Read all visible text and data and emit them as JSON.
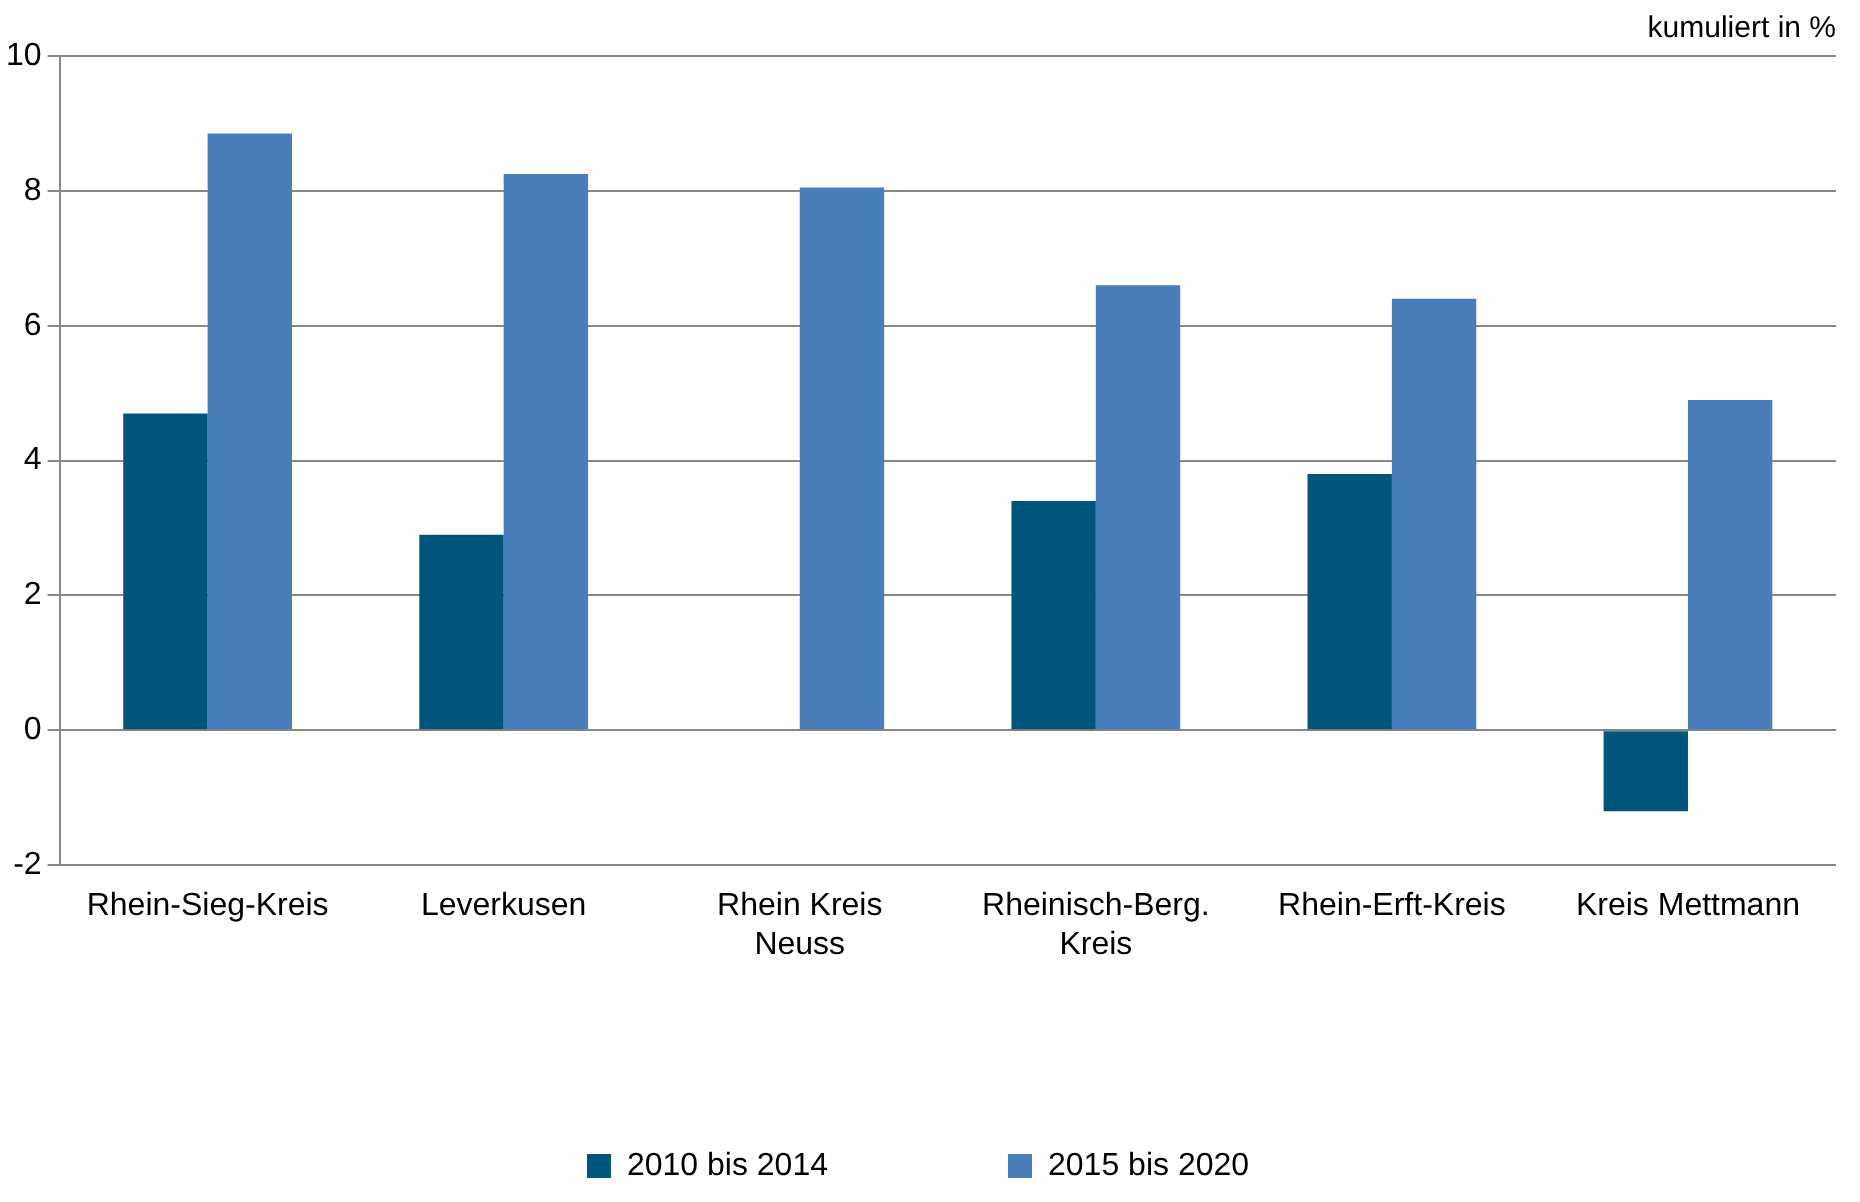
{
  "chart_data": {
    "type": "bar",
    "ylabel": "kumuliert in %",
    "categories": [
      "Rhein-Sieg-Kreis",
      "Leverkusen",
      "Rhein Kreis Neuss",
      "Rheinisch-Berg. Kreis",
      "Rhein-Erft-Kreis",
      "Kreis Mettmann"
    ],
    "series": [
      {
        "name": "2010 bis 2014",
        "color": "#00557a",
        "values": [
          4.7,
          2.9,
          null,
          3.4,
          3.8,
          -1.2
        ]
      },
      {
        "name": "2015 bis 2020",
        "color": "#4a7ebb",
        "values": [
          8.85,
          8.25,
          8.05,
          6.6,
          6.4,
          4.9
        ]
      }
    ],
    "ylim": [
      -2,
      10
    ],
    "yticks": [
      -2,
      0,
      2,
      4,
      6,
      8,
      10
    ],
    "grid": "y",
    "legend": "bottom"
  }
}
